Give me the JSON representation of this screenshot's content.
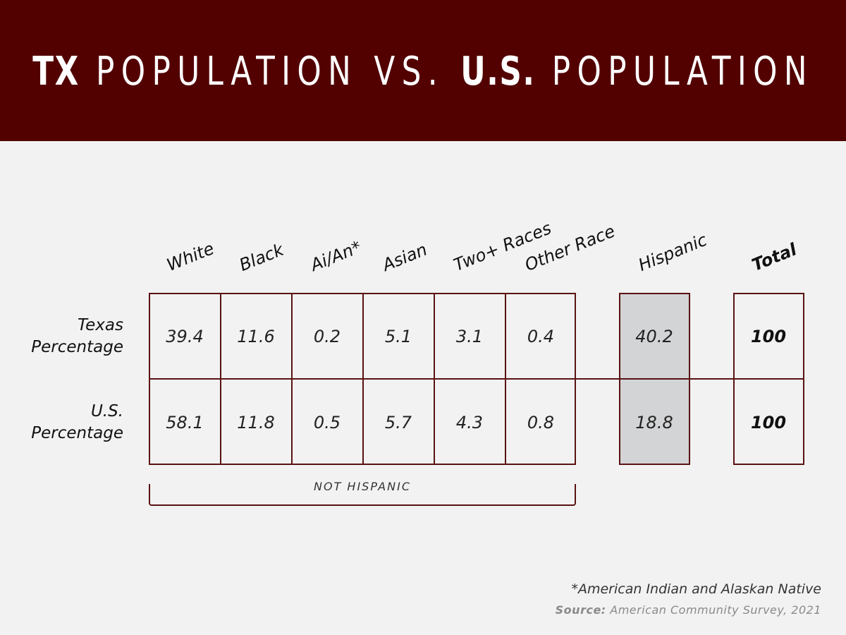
{
  "header": {
    "title_part1": "TX",
    "title_part2": " POPULATION VS. ",
    "title_part3": "U.S.",
    "title_part4": " POPULATION"
  },
  "colors": {
    "banner": "#520000",
    "grid": "#5a1212",
    "background": "#f2f2f2",
    "hispanic_fill": "#d3d4d6"
  },
  "chart_data": {
    "type": "table",
    "columns": [
      "White",
      "Black",
      "Ai/An*",
      "Asian",
      "Two+ Races",
      "Other Race",
      "Hispanic",
      "Total"
    ],
    "rows": [
      {
        "label_line1": "Texas",
        "label_line2": "Percentage",
        "values": [
          "39.4",
          "11.6",
          "0.2",
          "5.1",
          "3.1",
          "0.4",
          "40.2",
          "100"
        ]
      },
      {
        "label_line1": "U.S.",
        "label_line2": "Percentage",
        "values": [
          "58.1",
          "11.8",
          "0.5",
          "5.7",
          "4.3",
          "0.8",
          "18.8",
          "100"
        ]
      }
    ],
    "group_label": "NOT HISPANIC"
  },
  "footnote": "*American Indian and Alaskan Native",
  "source": {
    "lead": "Source:",
    "text": " American Community Survey, 2021"
  }
}
